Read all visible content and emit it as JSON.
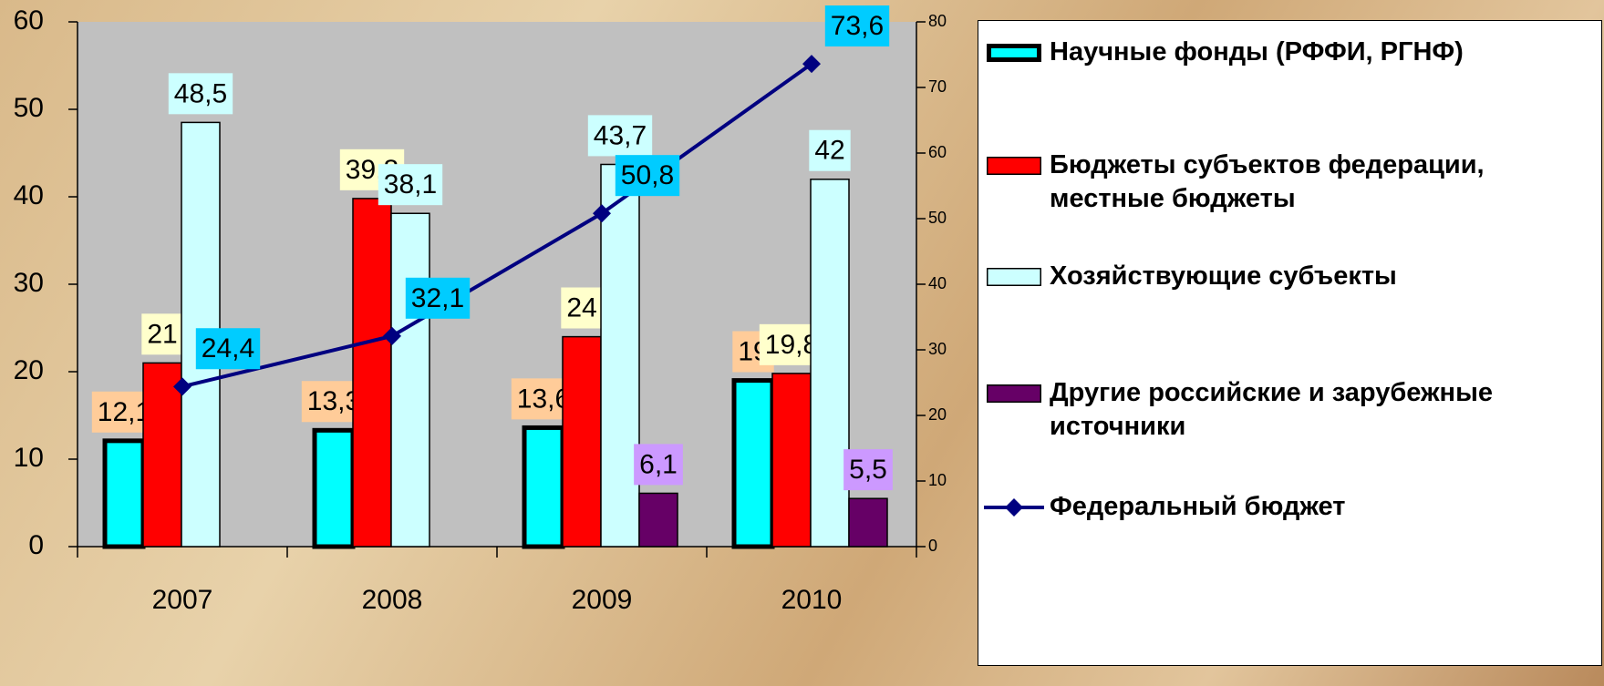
{
  "chart_data": {
    "type": "bar",
    "categories": [
      "2007",
      "2008",
      "2009",
      "2010"
    ],
    "series": [
      {
        "name": "Научные фонды (РФФИ, РГНФ)",
        "color": "#00ffff",
        "edge_width": 5,
        "label_color": "#ffcc99",
        "values": [
          12.1,
          13.3,
          13.6,
          19
        ],
        "value_labels": [
          "12,1",
          "13,3",
          "13,6",
          "19"
        ]
      },
      {
        "name": "Бюджеты субъектов федерации, местные бюджеты",
        "color": "#ff0000",
        "edge_width": 1.5,
        "label_color": "#ffffcc",
        "values": [
          21,
          39.8,
          24,
          19.8
        ],
        "value_labels": [
          "21",
          "39,8",
          "24",
          "19,8"
        ]
      },
      {
        "name": "Хозяйствующие субъекты",
        "color": "#ccffff",
        "edge_width": 1.5,
        "label_color": "#ccffff",
        "values": [
          48.5,
          38.1,
          43.7,
          42
        ],
        "value_labels": [
          "48,5",
          "38,1",
          "43,7",
          "42"
        ]
      },
      {
        "name": "Другие  российские и зарубежные источники",
        "color": "#660066",
        "edge_width": 1.5,
        "label_color": "#cc99ff",
        "values": [
          null,
          null,
          6.1,
          5.5
        ],
        "value_labels": [
          null,
          null,
          "6,1",
          "5,5"
        ]
      },
      {
        "name": "Федеральный бюджет",
        "color": "#000080",
        "label_color": "#00ccff",
        "axis": "y2",
        "type": "line",
        "values": [
          24.4,
          32.1,
          50.8,
          73.6
        ],
        "value_labels": [
          "24,4",
          "32,1",
          "50,8",
          "73,6"
        ]
      }
    ],
    "ylim": [
      0,
      60
    ],
    "yticks": [
      0,
      10,
      20,
      30,
      40,
      50,
      60
    ],
    "y2lim": [
      0,
      80
    ],
    "y2ticks": [
      0,
      10,
      20,
      30,
      40,
      50,
      60,
      70,
      80
    ],
    "legend": "right"
  }
}
